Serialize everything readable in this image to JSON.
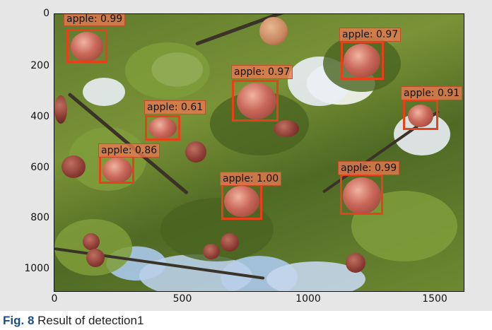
{
  "figure": {
    "caption_prefix": "Fig. 8",
    "caption_text": "Result of detection1"
  },
  "axes": {
    "y_ticks": [
      "0",
      "200",
      "400",
      "600",
      "800",
      "1000"
    ],
    "x_ticks": [
      "0",
      "500",
      "1000",
      "1500"
    ]
  },
  "colors": {
    "box": "#e8401a",
    "label_bg": "#e87850"
  },
  "detections": [
    {
      "label": "apple: 0.99",
      "class": "apple",
      "score": 0.99
    },
    {
      "label": "apple: 0.97",
      "class": "apple",
      "score": 0.97
    },
    {
      "label": "apple: 0.97",
      "class": "apple",
      "score": 0.97
    },
    {
      "label": "apple: 0.91",
      "class": "apple",
      "score": 0.91
    },
    {
      "label": "apple: 0.61",
      "class": "apple",
      "score": 0.61
    },
    {
      "label": "apple: 0.86",
      "class": "apple",
      "score": 0.86
    },
    {
      "label": "apple: 1.00",
      "class": "apple",
      "score": 1.0
    },
    {
      "label": "apple: 0.99",
      "class": "apple",
      "score": 0.99
    }
  ]
}
